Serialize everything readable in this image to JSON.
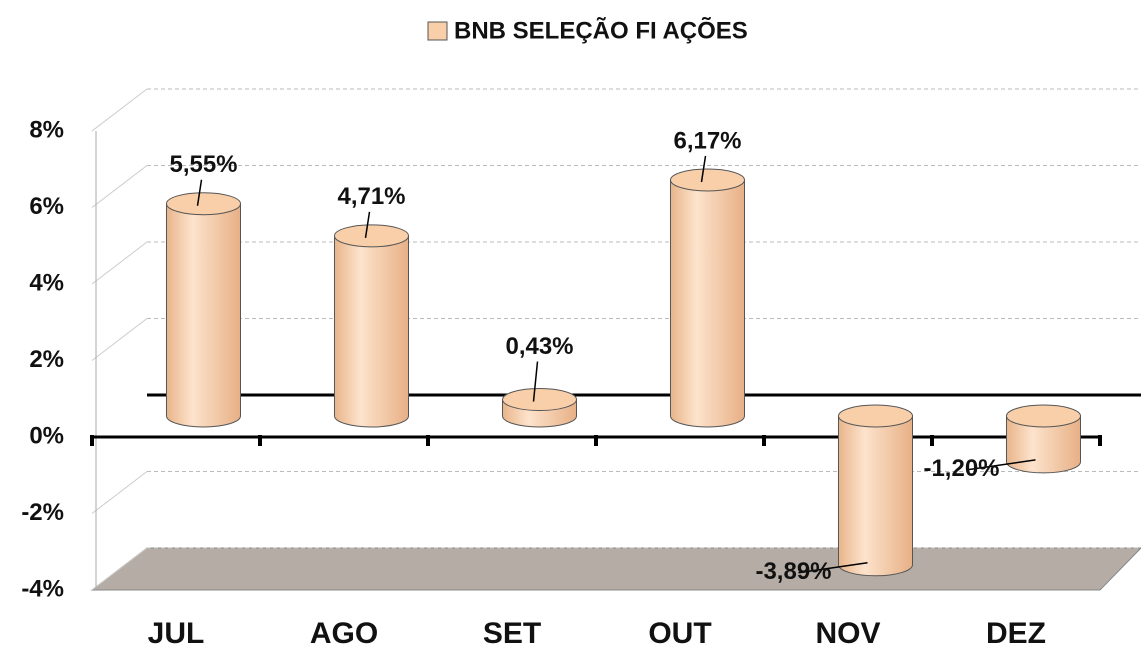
{
  "chart_data": {
    "type": "bar",
    "categories": [
      "JUL",
      "AGO",
      "SET",
      "OUT",
      "NOV",
      "DEZ"
    ],
    "series": [
      {
        "name": "BNB SELEÇÃO FI AÇÕES",
        "color": "#f9cfaa",
        "values": [
          5.55,
          4.71,
          0.43,
          6.17,
          -3.89,
          -1.2
        ],
        "value_labels": [
          "5,55%",
          "4,71%",
          "0,43%",
          "6,17%",
          "-3,89%",
          "-1,20%"
        ]
      }
    ],
    "ylim": [
      -4,
      8
    ],
    "yticks": [
      {
        "value": -4,
        "label": "-4%"
      },
      {
        "value": -2,
        "label": "-2%"
      },
      {
        "value": 0,
        "label": "0%"
      },
      {
        "value": 2,
        "label": "2%"
      },
      {
        "value": 4,
        "label": "4%"
      },
      {
        "value": 6,
        "label": "6%"
      },
      {
        "value": 8,
        "label": "8%"
      }
    ],
    "grid": true,
    "legend": "top"
  }
}
